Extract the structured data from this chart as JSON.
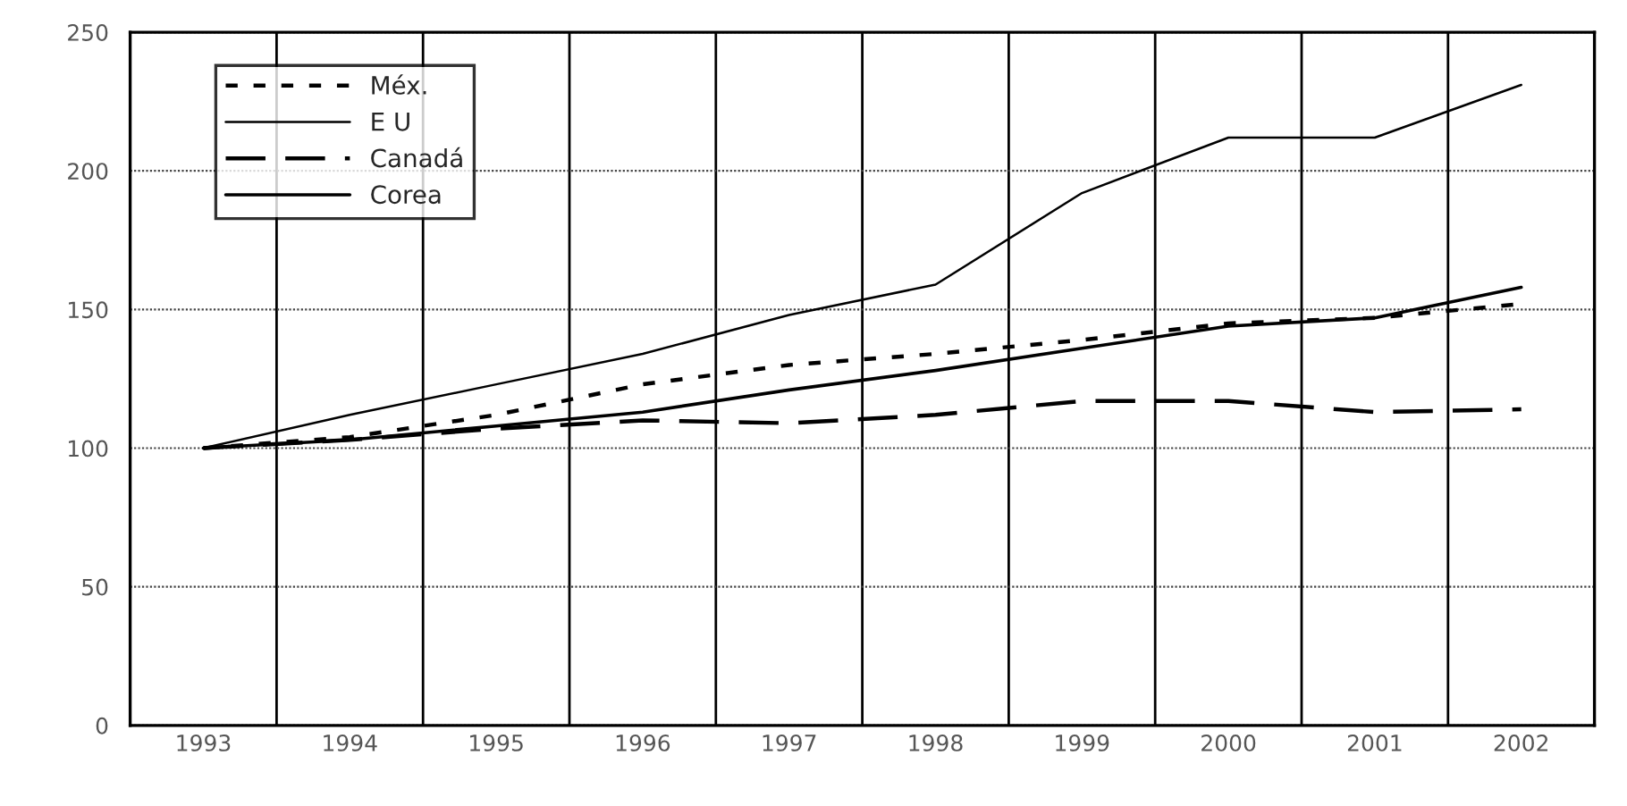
{
  "chart_data": {
    "type": "line",
    "categories": [
      "1993",
      "1994",
      "1995",
      "1996",
      "1997",
      "1998",
      "1999",
      "2000",
      "2001",
      "2002"
    ],
    "series": [
      {
        "name": "Méx.",
        "color": "#000000",
        "line_style": "dotted",
        "values": [
          100,
          104,
          112,
          123,
          130,
          134,
          139,
          145,
          147,
          152
        ]
      },
      {
        "name": "E U",
        "color": "#000000",
        "line_style": "solid",
        "values": [
          100,
          112,
          123,
          134,
          148,
          159,
          192,
          212,
          212,
          231
        ]
      },
      {
        "name": "Canadá",
        "color": "#000000",
        "line_style": "dashed",
        "values": [
          100,
          103,
          107,
          110,
          109,
          112,
          117,
          117,
          113,
          114
        ]
      },
      {
        "name": "Corea",
        "color": "#000000",
        "line_style": "solid",
        "values": [
          100,
          103,
          108,
          113,
          121,
          128,
          136,
          144,
          147,
          158
        ]
      }
    ],
    "ylim": [
      0,
      250
    ],
    "yticks": [
      0,
      50,
      100,
      150,
      200,
      250
    ],
    "grid": true,
    "legend": "top left",
    "marker": "none"
  }
}
